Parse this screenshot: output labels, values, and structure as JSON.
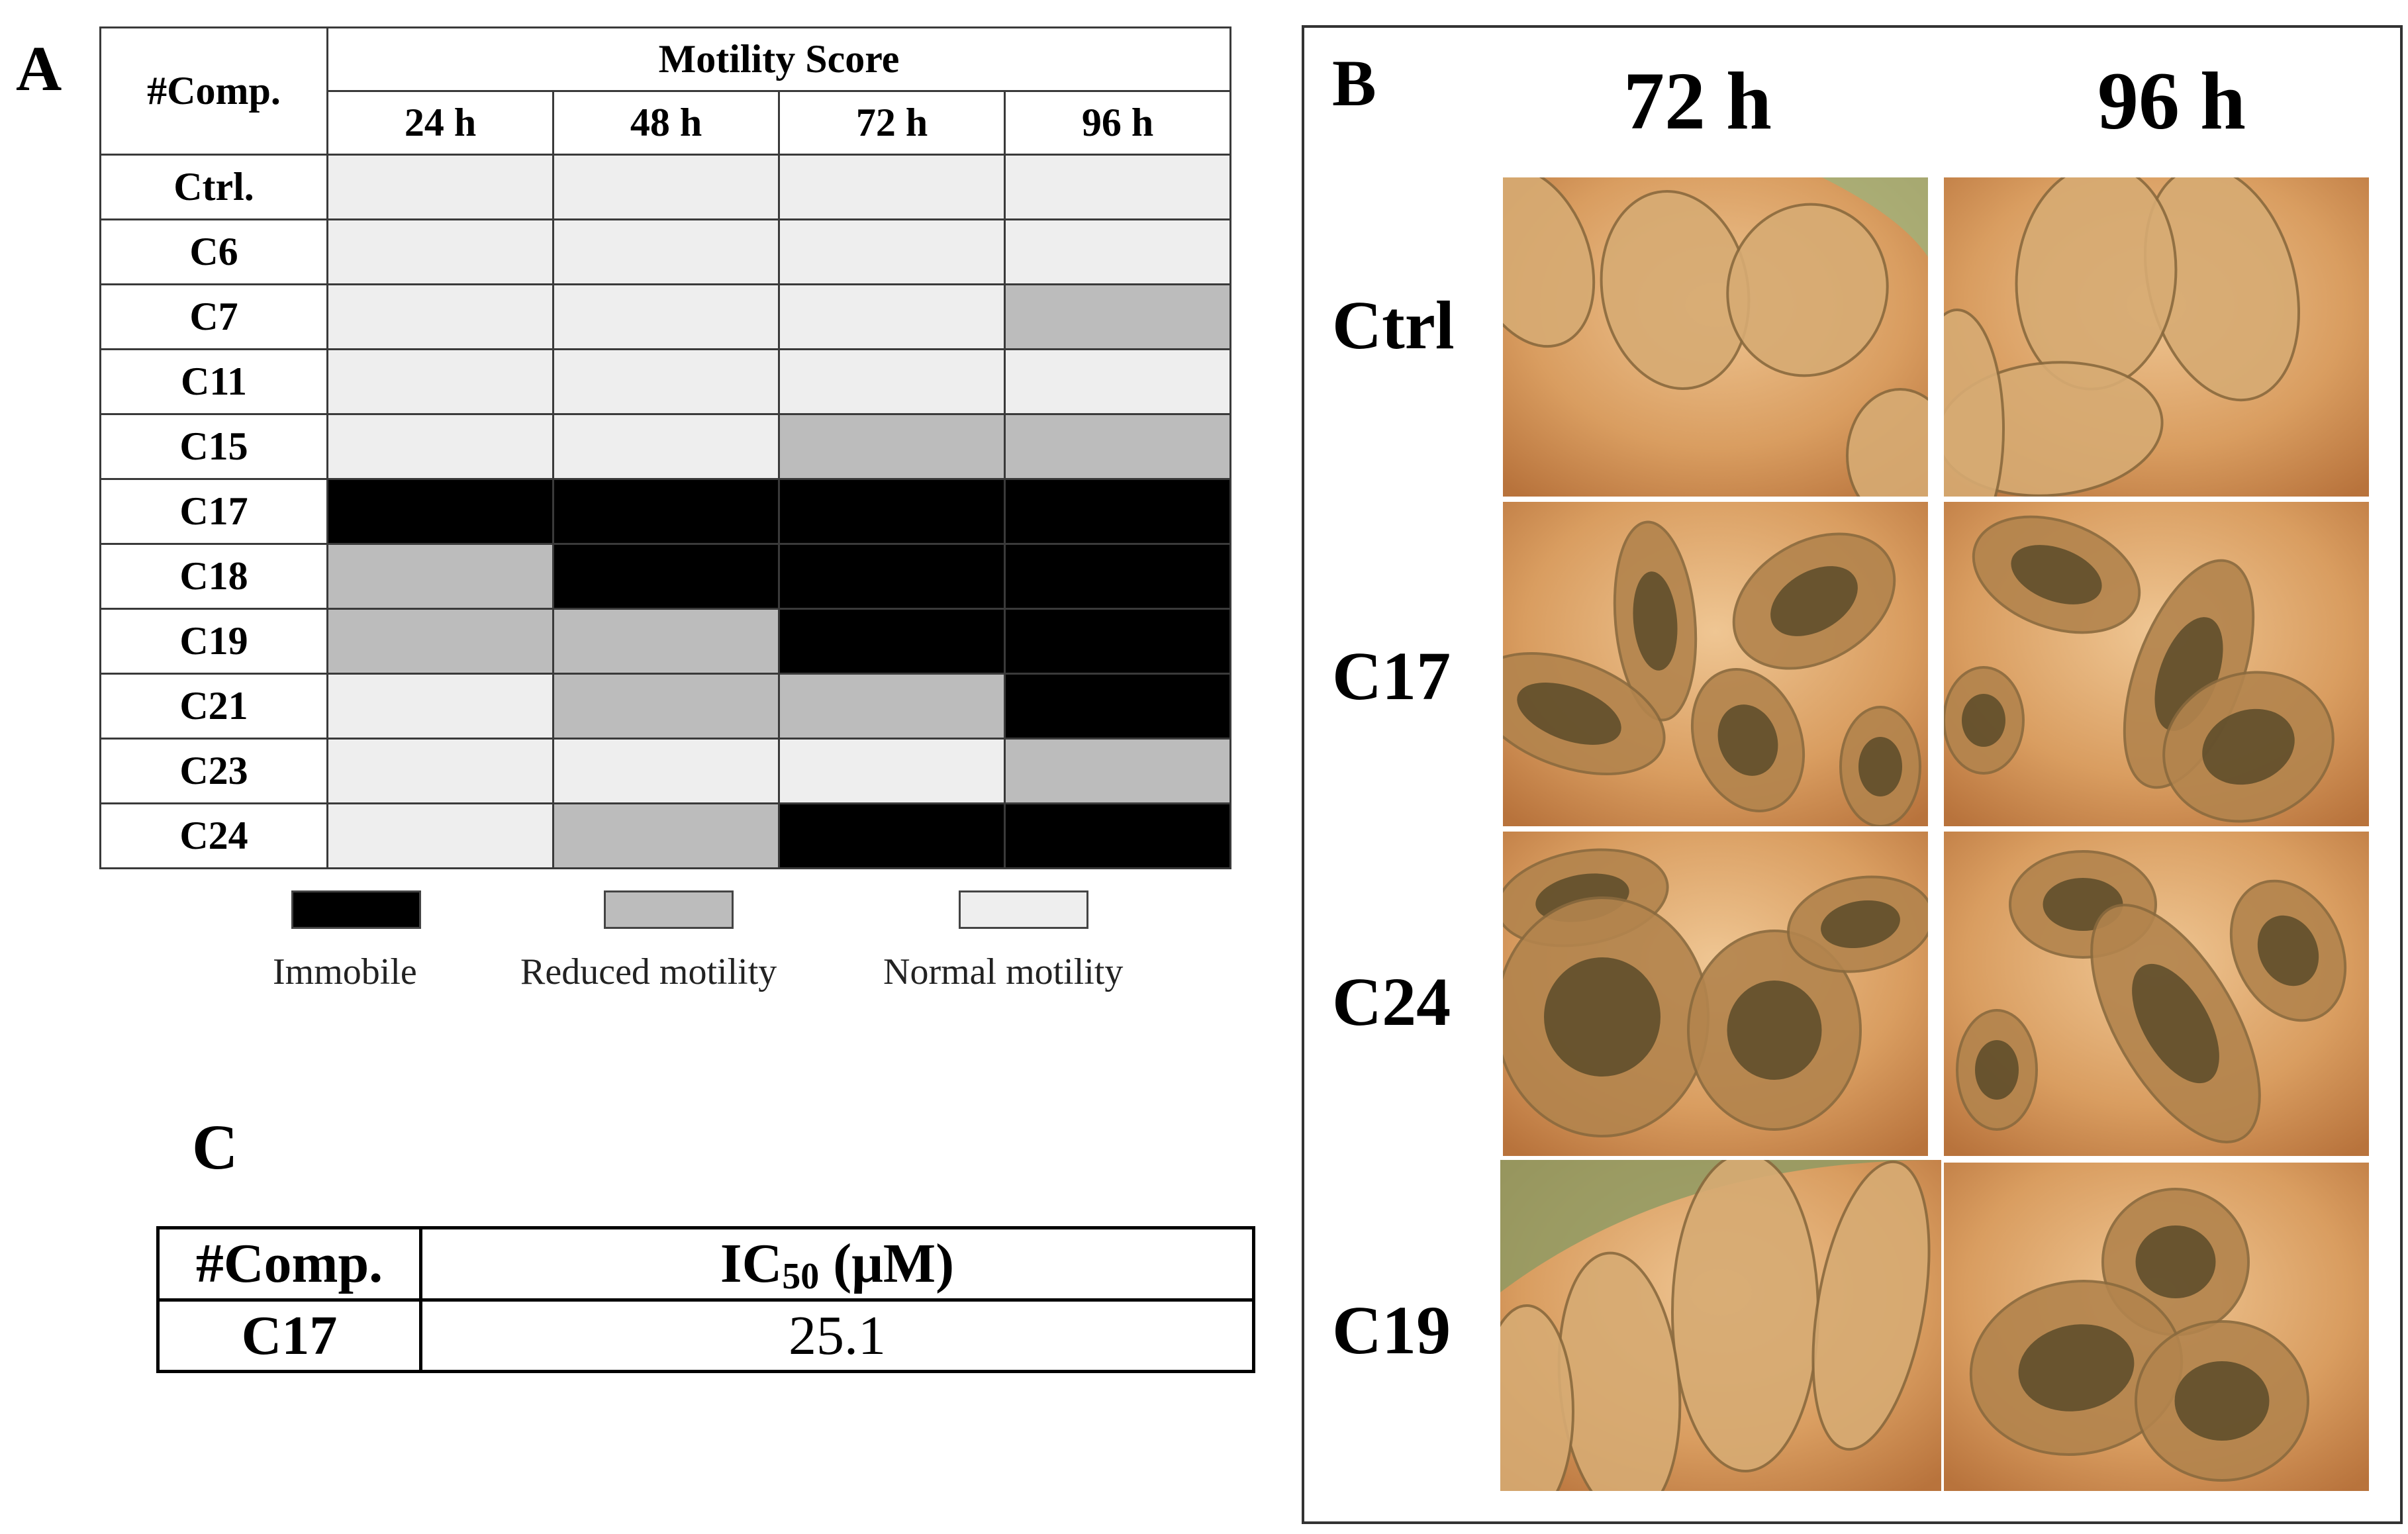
{
  "panel_a": {
    "letter": "A",
    "corner_header": "#Comp.",
    "group_header": "Motility Score",
    "time_points": [
      "24 h",
      "48 h",
      "72 h",
      "96 h"
    ],
    "rows": [
      {
        "compound": "Ctrl.",
        "scores": [
          "Normal motility",
          "Normal motility",
          "Normal motility",
          "Normal motility"
        ]
      },
      {
        "compound": "C6",
        "scores": [
          "Normal motility",
          "Normal motility",
          "Normal motility",
          "Normal motility"
        ]
      },
      {
        "compound": "C7",
        "scores": [
          "Normal motility",
          "Normal motility",
          "Normal motility",
          "Reduced motility"
        ]
      },
      {
        "compound": "C11",
        "scores": [
          "Normal motility",
          "Normal motility",
          "Normal motility",
          "Normal motility"
        ]
      },
      {
        "compound": "C15",
        "scores": [
          "Normal motility",
          "Normal motility",
          "Reduced motility",
          "Reduced motility"
        ]
      },
      {
        "compound": "C17",
        "scores": [
          "Immobile",
          "Immobile",
          "Immobile",
          "Immobile"
        ]
      },
      {
        "compound": "C18",
        "scores": [
          "Reduced motility",
          "Immobile",
          "Immobile",
          "Immobile"
        ]
      },
      {
        "compound": "C19",
        "scores": [
          "Reduced motility",
          "Reduced motility",
          "Immobile",
          "Immobile"
        ]
      },
      {
        "compound": "C21",
        "scores": [
          "Normal motility",
          "Reduced motility",
          "Reduced motility",
          "Immobile"
        ]
      },
      {
        "compound": "C23",
        "scores": [
          "Normal motility",
          "Normal motility",
          "Normal motility",
          "Reduced motility"
        ]
      },
      {
        "compound": "C24",
        "scores": [
          "Normal motility",
          "Reduced motility",
          "Immobile",
          "Immobile"
        ]
      }
    ],
    "legend": [
      {
        "label": "Immobile",
        "color": "#000000"
      },
      {
        "label": "Reduced motility",
        "color": "#bcbcbc"
      },
      {
        "label": "Normal motility",
        "color": "#eeeeee"
      }
    ]
  },
  "panel_b": {
    "letter": "B",
    "time_headers": [
      "72 h",
      "96 h"
    ],
    "row_labels": [
      "Ctrl",
      "C17",
      "C24",
      "C19"
    ],
    "image_tone": "#d89a5e"
  },
  "panel_c": {
    "letter": "C",
    "header_compound": "#Comp.",
    "header_ic50_prefix": "IC",
    "header_ic50_subscript": "50",
    "header_ic50_suffix": " (μM)",
    "compound": "C17",
    "ic50_value": "25.1"
  }
}
